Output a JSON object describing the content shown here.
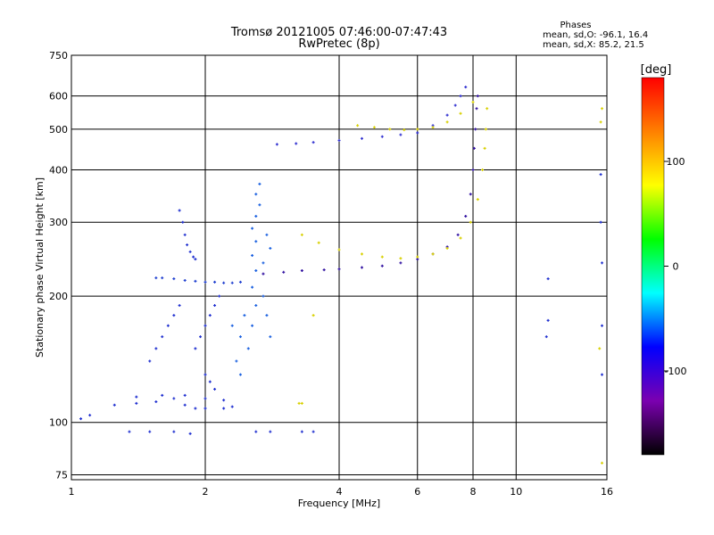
{
  "chart_data": {
    "type": "scatter",
    "title": "Tromsø 20121005 07:46:00-07:47:43",
    "subtitle": "RwPretec (8p)",
    "xlabel": "Frequency [MHz]",
    "ylabel": "Stationary phase Virtual Height [km]",
    "x_scale": "log",
    "y_scale": "log",
    "xlim": [
      1,
      16
    ],
    "ylim": [
      73,
      750
    ],
    "x_ticks": [
      1,
      2,
      4,
      6,
      8,
      10,
      16
    ],
    "y_ticks": [
      75,
      100,
      200,
      300,
      400,
      500,
      600,
      750
    ],
    "grid": true,
    "info": {
      "heading": "Phases",
      "line1": "mean, sd,O: -96.1, 16.4",
      "line2": "mean, sd,X:  85.2, 21.5"
    },
    "colorbar": {
      "label": "[deg]",
      "range": [
        -180,
        180
      ],
      "ticks": [
        100,
        0,
        -100
      ],
      "colors": [
        "#ff0000",
        "#ff8000",
        "#ffff00",
        "#00ff00",
        "#00ffff",
        "#0000ff",
        "#7b00b0",
        "#000000"
      ]
    },
    "traces": [
      {
        "id": "low-band",
        "color": "#2030d0",
        "points": [
          [
            1.05,
            102
          ],
          [
            1.1,
            104
          ],
          [
            1.25,
            110
          ],
          [
            1.4,
            111
          ],
          [
            1.55,
            112
          ],
          [
            1.7,
            114
          ],
          [
            1.8,
            110
          ],
          [
            1.9,
            108
          ],
          [
            2.0,
            108
          ],
          [
            2.2,
            108
          ],
          [
            2.3,
            109
          ]
        ]
      },
      {
        "id": "low-band-sparse",
        "color": "#2030d0",
        "points": [
          [
            1.4,
            115
          ],
          [
            1.6,
            116
          ],
          [
            1.8,
            116
          ],
          [
            2.0,
            114
          ],
          [
            2.2,
            113
          ],
          [
            1.35,
            95
          ],
          [
            1.5,
            95
          ],
          [
            1.7,
            95
          ],
          [
            1.85,
            94
          ],
          [
            2.6,
            95
          ],
          [
            2.8,
            95
          ],
          [
            3.3,
            95
          ],
          [
            3.5,
            95
          ]
        ]
      },
      {
        "id": "e-layer",
        "color": "#2040d0",
        "points": [
          [
            1.55,
            221
          ],
          [
            1.6,
            221
          ],
          [
            1.7,
            220
          ],
          [
            1.8,
            218
          ],
          [
            1.9,
            217
          ],
          [
            2.0,
            216
          ],
          [
            2.1,
            216
          ],
          [
            2.2,
            215
          ],
          [
            2.3,
            215
          ],
          [
            2.4,
            216
          ]
        ]
      },
      {
        "id": "e-spur",
        "color": "#2030d0",
        "points": [
          [
            1.75,
            320
          ],
          [
            1.78,
            300
          ],
          [
            1.8,
            280
          ],
          [
            1.82,
            265
          ],
          [
            1.85,
            255
          ],
          [
            1.88,
            248
          ],
          [
            1.9,
            245
          ]
        ]
      },
      {
        "id": "low-vertical",
        "color": "#2030d0",
        "points": [
          [
            1.5,
            140
          ],
          [
            1.55,
            150
          ],
          [
            1.6,
            160
          ],
          [
            1.65,
            170
          ],
          [
            1.7,
            180
          ],
          [
            1.75,
            190
          ],
          [
            1.9,
            150
          ],
          [
            1.95,
            160
          ],
          [
            2.0,
            170
          ],
          [
            2.05,
            180
          ],
          [
            2.1,
            190
          ],
          [
            2.15,
            200
          ],
          [
            2.0,
            130
          ],
          [
            2.05,
            125
          ],
          [
            2.1,
            120
          ]
        ]
      },
      {
        "id": "spread-column",
        "color": "#1a60e0",
        "points": [
          [
            2.5,
            150
          ],
          [
            2.55,
            170
          ],
          [
            2.6,
            190
          ],
          [
            2.55,
            210
          ],
          [
            2.6,
            230
          ],
          [
            2.55,
            250
          ],
          [
            2.6,
            270
          ],
          [
            2.55,
            290
          ],
          [
            2.6,
            310
          ],
          [
            2.65,
            330
          ],
          [
            2.6,
            350
          ],
          [
            2.65,
            370
          ],
          [
            2.7,
            200
          ],
          [
            2.75,
            180
          ],
          [
            2.8,
            160
          ],
          [
            2.7,
            240
          ],
          [
            2.8,
            260
          ],
          [
            2.75,
            280
          ],
          [
            2.4,
            160
          ],
          [
            2.45,
            180
          ],
          [
            2.3,
            170
          ],
          [
            2.35,
            140
          ],
          [
            2.4,
            130
          ]
        ]
      },
      {
        "id": "f-o-trace",
        "color": "#3010a0",
        "points": [
          [
            2.7,
            226
          ],
          [
            3.0,
            228
          ],
          [
            3.3,
            230
          ],
          [
            3.7,
            231
          ],
          [
            4.0,
            232
          ],
          [
            4.5,
            234
          ],
          [
            5.0,
            236
          ],
          [
            5.5,
            240
          ],
          [
            6.0,
            245
          ],
          [
            6.5,
            252
          ],
          [
            7.0,
            262
          ],
          [
            7.4,
            280
          ],
          [
            7.7,
            310
          ],
          [
            7.9,
            350
          ],
          [
            8.0,
            400
          ],
          [
            8.05,
            450
          ],
          [
            8.1,
            500
          ],
          [
            8.15,
            560
          ],
          [
            8.2,
            600
          ]
        ]
      },
      {
        "id": "f-x-trace",
        "color": "#d8d000",
        "points": [
          [
            3.3,
            280
          ],
          [
            3.6,
            268
          ],
          [
            4.0,
            258
          ],
          [
            4.5,
            252
          ],
          [
            5.0,
            248
          ],
          [
            5.5,
            246
          ],
          [
            6.0,
            248
          ],
          [
            6.5,
            252
          ],
          [
            7.0,
            260
          ],
          [
            7.5,
            275
          ],
          [
            7.9,
            300
          ],
          [
            8.2,
            340
          ],
          [
            8.4,
            400
          ],
          [
            8.5,
            450
          ],
          [
            8.55,
            500
          ],
          [
            8.6,
            560
          ]
        ]
      },
      {
        "id": "f-echo-o",
        "color": "#3030d0",
        "points": [
          [
            2.9,
            460
          ],
          [
            3.2,
            462
          ],
          [
            3.5,
            465
          ],
          [
            4.0,
            470
          ],
          [
            4.5,
            475
          ],
          [
            5.0,
            480
          ],
          [
            5.5,
            485
          ],
          [
            6.0,
            490
          ],
          [
            6.5,
            510
          ],
          [
            7.0,
            540
          ],
          [
            7.3,
            570
          ],
          [
            7.5,
            600
          ],
          [
            7.7,
            630
          ]
        ]
      },
      {
        "id": "f-echo-x",
        "color": "#d8d000",
        "points": [
          [
            4.4,
            510
          ],
          [
            4.8,
            505
          ],
          [
            5.2,
            500
          ],
          [
            5.6,
            498
          ],
          [
            6.0,
            500
          ],
          [
            6.5,
            505
          ],
          [
            7.0,
            520
          ],
          [
            7.5,
            545
          ],
          [
            8.0,
            580
          ]
        ]
      },
      {
        "id": "right-sparse",
        "color": "#2030d0",
        "points": [
          [
            11.8,
            220
          ],
          [
            11.8,
            175
          ],
          [
            11.7,
            160
          ],
          [
            15.5,
            390
          ],
          [
            15.5,
            300
          ],
          [
            15.6,
            240
          ],
          [
            15.6,
            170
          ],
          [
            15.6,
            130
          ]
        ]
      },
      {
        "id": "misc-yellow",
        "color": "#d8d000",
        "points": [
          [
            3.3,
            111
          ],
          [
            3.25,
            111
          ],
          [
            3.5,
            180
          ],
          [
            15.6,
            560
          ],
          [
            15.5,
            520
          ],
          [
            15.4,
            150
          ],
          [
            15.6,
            80
          ]
        ]
      }
    ]
  }
}
